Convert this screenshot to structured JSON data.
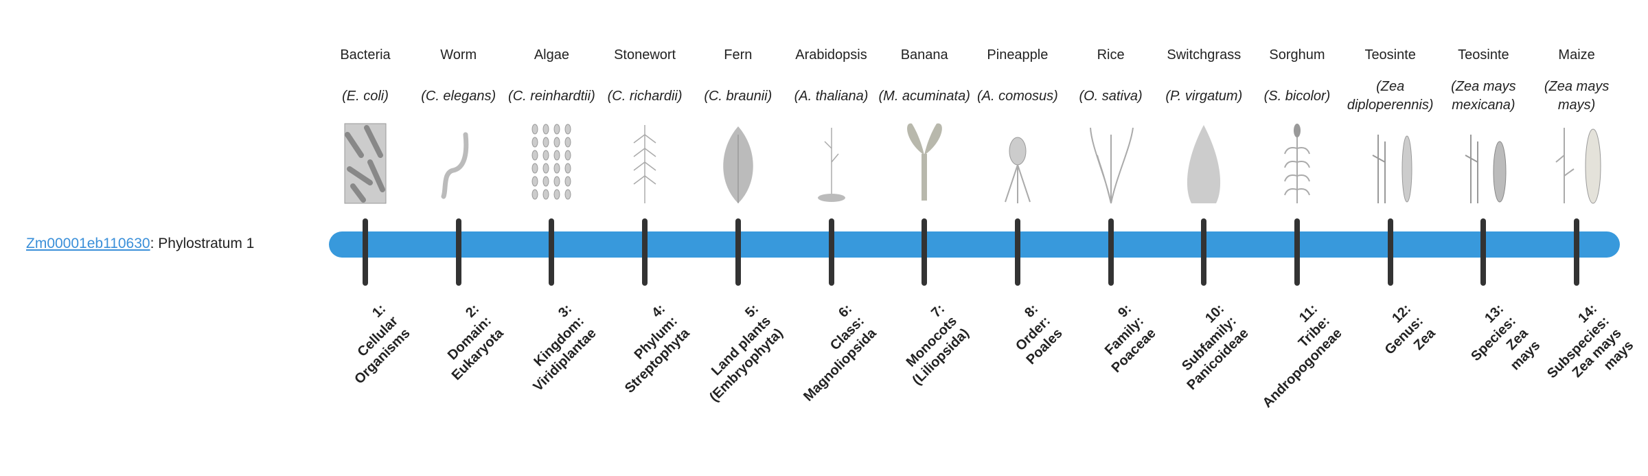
{
  "gene": {
    "id": "Zm00001eb110630",
    "separator": ": ",
    "stratum": "Phylostratum 1"
  },
  "colors": {
    "bar": "#3899dc",
    "link": "#3a8fd9",
    "tick": "#333333"
  },
  "strata": [
    {
      "common": "Bacteria",
      "scientific": "(E. coli)",
      "image": "bacteria-image",
      "rank": [
        "1:",
        "Cellular",
        "Organisms"
      ]
    },
    {
      "common": "Worm",
      "scientific": "(C. elegans)",
      "image": "worm-image",
      "rank": [
        "2:",
        "Domain:",
        "Eukaryota"
      ]
    },
    {
      "common": "Algae",
      "scientific": "(C. reinhardtii)",
      "image": "algae-image",
      "rank": [
        "3:",
        "Kingdom:",
        "Viridiplantae"
      ]
    },
    {
      "common": "Stonewort",
      "scientific": "(C. richardii)",
      "image": "stonewort-image",
      "rank": [
        "4:",
        "Phylum:",
        "Streptophyta"
      ]
    },
    {
      "common": "Fern",
      "scientific": "(C. braunii)",
      "image": "fern-image",
      "rank": [
        "5:",
        "Land plants",
        "(Embryophyta)"
      ]
    },
    {
      "common": "Arabidopsis",
      "scientific": "(A. thaliana)",
      "image": "arabidopsis-image",
      "rank": [
        "6:",
        "Class:",
        "Magnoliopsida"
      ]
    },
    {
      "common": "Banana",
      "scientific": "(M. acuminata)",
      "image": "banana-image",
      "rank": [
        "7:",
        "Monocots",
        "(Liliopsida)"
      ]
    },
    {
      "common": "Pineapple",
      "scientific": "(A. comosus)",
      "image": "pineapple-image",
      "rank": [
        "8:",
        "Order:",
        "Poales"
      ]
    },
    {
      "common": "Rice",
      "scientific": "(O. sativa)",
      "image": "rice-image",
      "rank": [
        "9:",
        "Family:",
        "Poaceae"
      ]
    },
    {
      "common": "Switchgrass",
      "scientific": "(P. virgatum)",
      "image": "switchgrass-image",
      "rank": [
        "10:",
        "Subfamily:",
        "Panicoideae"
      ]
    },
    {
      "common": "Sorghum",
      "scientific": "(S. bicolor)",
      "image": "sorghum-image",
      "rank": [
        "11:",
        "Tribe:",
        "Andropogoneae"
      ]
    },
    {
      "common": "Teosinte",
      "scientific": "(Zea diploperennis)",
      "image": "teosinte-image",
      "rank": [
        "12:",
        "Genus:",
        "Zea"
      ]
    },
    {
      "common": "Teosinte",
      "scientific": "(Zea mays mexicana)",
      "image": "teosinte-mexicana-image",
      "rank": [
        "13:",
        "Species:",
        "Zea",
        "mays"
      ]
    },
    {
      "common": "Maize",
      "scientific": "(Zea mays mays)",
      "image": "maize-image",
      "rank": [
        "14:",
        "Subspecies:",
        "Zea mays",
        "mays"
      ]
    }
  ]
}
